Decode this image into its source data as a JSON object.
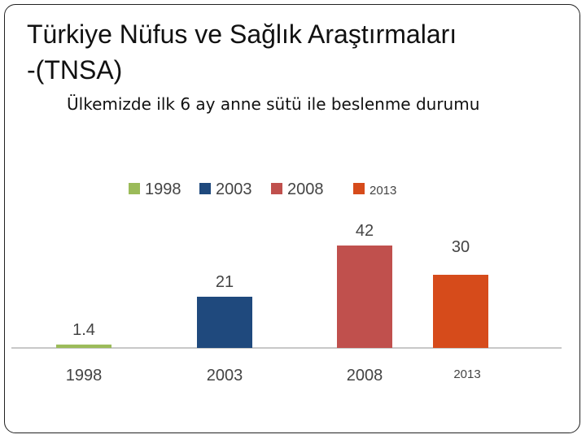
{
  "slide": {
    "title_line1": "Türkiye Nüfus ve Sağlık Araştırmaları",
    "title_line2": "-(TNSA)",
    "subtitle": "Ülkemizde ilk 6 ay anne sütü ile beslenme durumu"
  },
  "chart_data": {
    "type": "bar",
    "categories": [
      "1998",
      "2003",
      "2008",
      "2013"
    ],
    "values": [
      1.4,
      21,
      42,
      30
    ],
    "data_labels": [
      "1.4",
      "21",
      "42",
      "30"
    ],
    "legend": [
      "1998",
      "2003",
      "2008",
      "2013"
    ],
    "legend_position": "top",
    "colors": [
      "#9bbb59",
      "#1f497d",
      "#c0504d",
      "#d64b1b"
    ],
    "ylim": [
      0,
      50
    ],
    "grid": false
  }
}
